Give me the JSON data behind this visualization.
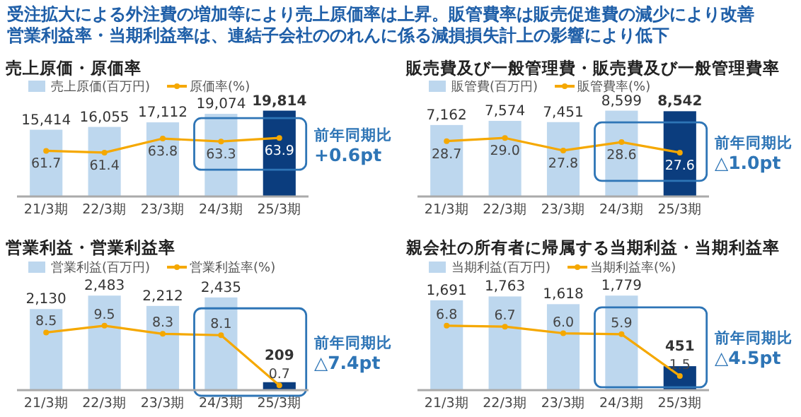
{
  "chart_data": [
    {
      "type": "bar",
      "title": "売上原価・原価率",
      "annotations": [
        "受注拡大による外注費の増加等により売上原価率は上昇。販管費率は販売促進費の減少により改善",
        "営業利益率・当期利益率は、連結子会社ののれんに係る減損損失計上の影響により低下",
        "前年同期比 +0.6pt"
      ],
      "categories": [
        "21/3期",
        "22/3期",
        "23/3期",
        "24/3期",
        "25/3期"
      ],
      "series": [
        {
          "name": "売上原価(百万円)",
          "type": "bar",
          "colors": [
            "#bdd7ee",
            "#bdd7ee",
            "#bdd7ee",
            "#bdd7ee",
            "#0b3d7e"
          ],
          "values": [
            15414,
            16055,
            17112,
            19074,
            19814
          ],
          "value_labels": [
            "15,414",
            "16,055",
            "17,112",
            "19,074",
            "19,814"
          ]
        },
        {
          "name": "原価率(%)",
          "type": "line",
          "axis": "y2",
          "color": "#f5a800",
          "values": [
            61.7,
            61.4,
            63.8,
            63.3,
            63.9
          ],
          "value_labels": [
            "61.7",
            "61.4",
            "63.8",
            "63.3",
            "63.9"
          ]
        }
      ],
      "tick_labels": "x",
      "legend": "top left",
      "marker": "circle"
    },
    {
      "type": "bar",
      "title": "販売費及び一般管理費・販売費及び一般管理費率",
      "annotations": [
        "前年同期比 △1.0pt"
      ],
      "categories": [
        "21/3期",
        "22/3期",
        "23/3期",
        "24/3期",
        "25/3期"
      ],
      "series": [
        {
          "name": "販管費(百万円)",
          "type": "bar",
          "colors": [
            "#bdd7ee",
            "#bdd7ee",
            "#bdd7ee",
            "#bdd7ee",
            "#0b3d7e"
          ],
          "values": [
            7162,
            7574,
            7451,
            8599,
            8542
          ],
          "value_labels": [
            "7,162",
            "7,574",
            "7,451",
            "8,599",
            "8,542"
          ]
        },
        {
          "name": "販管費率(%)",
          "type": "line",
          "axis": "y2",
          "color": "#f5a800",
          "values": [
            28.7,
            29.0,
            27.8,
            28.6,
            27.6
          ],
          "value_labels": [
            "28.7",
            "29.0",
            "27.8",
            "28.6",
            "27.6"
          ]
        }
      ],
      "tick_labels": "x",
      "legend": "top left",
      "marker": "circle"
    },
    {
      "type": "bar",
      "title": "営業利益・営業利益率",
      "annotations": [
        "前年同期比 △7.4pt"
      ],
      "categories": [
        "21/3期",
        "22/3期",
        "23/3期",
        "24/3期",
        "25/3期"
      ],
      "series": [
        {
          "name": "営業利益(百万円)",
          "type": "bar",
          "colors": [
            "#bdd7ee",
            "#bdd7ee",
            "#bdd7ee",
            "#bdd7ee",
            "#0b3d7e"
          ],
          "values": [
            2130,
            2483,
            2212,
            2435,
            209
          ],
          "value_labels": [
            "2,130",
            "2,483",
            "2,212",
            "2,435",
            "209"
          ]
        },
        {
          "name": "営業利益率(%)",
          "type": "line",
          "axis": "y2",
          "color": "#f5a800",
          "values": [
            8.5,
            9.5,
            8.3,
            8.1,
            0.7
          ],
          "value_labels": [
            "8.5",
            "9.5",
            "8.3",
            "8.1",
            "0.7"
          ]
        }
      ],
      "tick_labels": "x",
      "legend": "top left",
      "marker": "circle"
    },
    {
      "type": "bar",
      "title": "親会社の所有者に帰属する当期利益・当期利益率",
      "annotations": [
        "前年同期比 △4.5pt"
      ],
      "categories": [
        "21/3期",
        "22/3期",
        "23/3期",
        "24/3期",
        "25/3期"
      ],
      "series": [
        {
          "name": "当期利益(百万円)",
          "type": "bar",
          "colors": [
            "#bdd7ee",
            "#bdd7ee",
            "#bdd7ee",
            "#bdd7ee",
            "#0b3d7e"
          ],
          "values": [
            1691,
            1763,
            1618,
            1779,
            451
          ],
          "value_labels": [
            "1,691",
            "1,763",
            "1,618",
            "1,779",
            "451"
          ]
        },
        {
          "name": "当期利益率(%)",
          "type": "line",
          "axis": "y2",
          "color": "#f5a800",
          "values": [
            6.8,
            6.7,
            6.0,
            5.9,
            1.5
          ],
          "value_labels": [
            "6.8",
            "6.7",
            "6.0",
            "5.9",
            "1.5"
          ]
        }
      ],
      "tick_labels": "x",
      "legend": "top left",
      "marker": "circle"
    }
  ]
}
